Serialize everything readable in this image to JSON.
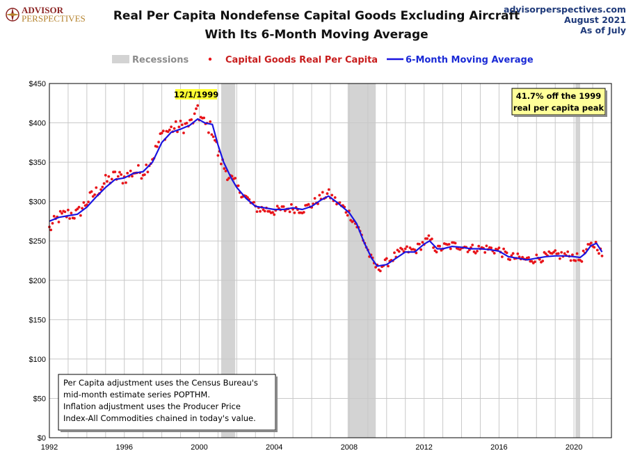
{
  "header": {
    "logo_line1": "ADVISOR",
    "logo_line2": "PERSPECTIVES",
    "title_line1": "Real Per Capita Nondefense Capital Goods Excluding Aircraft",
    "title_line2": "With Its 6-Month Moving Average",
    "site": "advisorperspectives.com",
    "date": "August 2021",
    "as_of": "As of July"
  },
  "legend": {
    "recessions": "Recessions",
    "dots": "Capital Goods Real Per Capita",
    "line": "6-Month Moving Average"
  },
  "colors": {
    "dots": "#e8141a",
    "line": "#1a14e0",
    "recession": "#d3d3d3",
    "peak_label_bg": "#ffff33",
    "callout_bg": "#ffff99",
    "legend_dots_text": "#c81e1e",
    "legend_line_text": "#1a2ad6",
    "legend_rec_text": "#8c8c8c"
  },
  "annotations": {
    "peak_label": "12/1/1999",
    "callout_line1": "41.7% off the 1999",
    "callout_line2": "real per capita peak",
    "note_lines": [
      "Per Capita adjustment uses the Census Bureau's",
      "mid-month estimate series POPTHM.",
      "Inflation adjustment uses the Producer Price",
      "Index-All Commodities chained in today's value."
    ]
  },
  "chart_data": {
    "type": "line",
    "title": "Real Per Capita Nondefense Capital Goods Excluding Aircraft With Its 6-Month Moving Average",
    "xlim": [
      1992,
      2022
    ],
    "ylim": [
      0,
      450
    ],
    "x_ticks": [
      1992,
      1996,
      2000,
      2004,
      2008,
      2012,
      2016,
      2020
    ],
    "y_ticks": [
      0,
      50,
      100,
      150,
      200,
      250,
      300,
      350,
      400,
      450
    ],
    "y_tick_labels": [
      "$0",
      "$50",
      "$100",
      "$150",
      "$200",
      "$250",
      "$300",
      "$350",
      "$400",
      "$450"
    ],
    "grid": true,
    "legend_position": "top",
    "recessions": [
      [
        2001.17,
        2001.92
      ],
      [
        2007.92,
        2009.42
      ],
      [
        2020.08,
        2020.33
      ]
    ],
    "peak": {
      "date": 1999.92,
      "value": 422
    },
    "series_points": {
      "name": "Capital Goods Real Per Capita",
      "anchors": [
        [
          1992.0,
          265
        ],
        [
          1992.5,
          280
        ],
        [
          1993.0,
          284
        ],
        [
          1993.5,
          284
        ],
        [
          1994.0,
          300
        ],
        [
          1994.5,
          312
        ],
        [
          1995.0,
          325
        ],
        [
          1995.5,
          332
        ],
        [
          1996.0,
          330
        ],
        [
          1996.5,
          338
        ],
        [
          1997.0,
          338
        ],
        [
          1997.5,
          355
        ],
        [
          1998.0,
          385
        ],
        [
          1998.5,
          392
        ],
        [
          1999.0,
          395
        ],
        [
          1999.5,
          398
        ],
        [
          1999.92,
          412
        ],
        [
          2000.3,
          398
        ],
        [
          2000.7,
          392
        ],
        [
          2001.0,
          362
        ],
        [
          2001.3,
          345
        ],
        [
          2001.7,
          328
        ],
        [
          2002.0,
          318
        ],
        [
          2002.5,
          305
        ],
        [
          2003.0,
          292
        ],
        [
          2003.5,
          290
        ],
        [
          2004.0,
          288
        ],
        [
          2004.5,
          290
        ],
        [
          2005.0,
          292
        ],
        [
          2005.5,
          290
        ],
        [
          2006.0,
          296
        ],
        [
          2006.5,
          305
        ],
        [
          2006.9,
          310
        ],
        [
          2007.3,
          300
        ],
        [
          2007.7,
          292
        ],
        [
          2008.0,
          285
        ],
        [
          2008.4,
          270
        ],
        [
          2008.8,
          250
        ],
        [
          2009.2,
          225
        ],
        [
          2009.5,
          215
        ],
        [
          2010.0,
          222
        ],
        [
          2010.5,
          232
        ],
        [
          2011.0,
          238
        ],
        [
          2011.5,
          238
        ],
        [
          2012.0,
          248
        ],
        [
          2012.3,
          252
        ],
        [
          2012.7,
          238
        ],
        [
          2013.0,
          242
        ],
        [
          2013.5,
          244
        ],
        [
          2014.0,
          244
        ],
        [
          2014.5,
          240
        ],
        [
          2015.0,
          240
        ],
        [
          2015.5,
          240
        ],
        [
          2016.0,
          238
        ],
        [
          2016.5,
          230
        ],
        [
          2017.0,
          228
        ],
        [
          2017.5,
          226
        ],
        [
          2018.0,
          228
        ],
        [
          2018.5,
          230
        ],
        [
          2019.0,
          232
        ],
        [
          2019.5,
          232
        ],
        [
          2020.0,
          230
        ],
        [
          2020.33,
          226
        ],
        [
          2020.6,
          236
        ],
        [
          2020.9,
          244
        ],
        [
          2021.2,
          246
        ],
        [
          2021.5,
          232
        ]
      ]
    },
    "series_ma": {
      "name": "6-Month Moving Average",
      "values": [
        [
          1992.0,
          275
        ],
        [
          1992.5,
          280
        ],
        [
          1993.0,
          282
        ],
        [
          1993.5,
          284
        ],
        [
          1994.0,
          293
        ],
        [
          1994.5,
          306
        ],
        [
          1995.0,
          318
        ],
        [
          1995.5,
          328
        ],
        [
          1996.0,
          330
        ],
        [
          1996.5,
          336
        ],
        [
          1997.0,
          338
        ],
        [
          1997.5,
          350
        ],
        [
          1998.0,
          375
        ],
        [
          1998.5,
          388
        ],
        [
          1999.0,
          392
        ],
        [
          1999.5,
          397
        ],
        [
          1999.92,
          405
        ],
        [
          2000.3,
          400
        ],
        [
          2000.7,
          398
        ],
        [
          2001.0,
          372
        ],
        [
          2001.3,
          350
        ],
        [
          2001.7,
          330
        ],
        [
          2002.0,
          318
        ],
        [
          2002.5,
          304
        ],
        [
          2003.0,
          294
        ],
        [
          2003.5,
          292
        ],
        [
          2004.0,
          290
        ],
        [
          2004.5,
          290
        ],
        [
          2005.0,
          292
        ],
        [
          2005.5,
          290
        ],
        [
          2006.0,
          294
        ],
        [
          2006.5,
          302
        ],
        [
          2006.9,
          307
        ],
        [
          2007.3,
          300
        ],
        [
          2007.7,
          292
        ],
        [
          2008.0,
          286
        ],
        [
          2008.4,
          272
        ],
        [
          2008.8,
          248
        ],
        [
          2009.2,
          228
        ],
        [
          2009.5,
          218
        ],
        [
          2010.0,
          220
        ],
        [
          2010.5,
          228
        ],
        [
          2011.0,
          236
        ],
        [
          2011.5,
          236
        ],
        [
          2012.0,
          246
        ],
        [
          2012.3,
          250
        ],
        [
          2012.7,
          240
        ],
        [
          2013.0,
          240
        ],
        [
          2013.5,
          243
        ],
        [
          2014.0,
          242
        ],
        [
          2014.5,
          240
        ],
        [
          2015.0,
          240
        ],
        [
          2015.5,
          239
        ],
        [
          2016.0,
          237
        ],
        [
          2016.5,
          230
        ],
        [
          2017.0,
          228
        ],
        [
          2017.5,
          226
        ],
        [
          2018.0,
          228
        ],
        [
          2018.5,
          230
        ],
        [
          2019.0,
          231
        ],
        [
          2019.5,
          231
        ],
        [
          2020.0,
          230
        ],
        [
          2020.33,
          229
        ],
        [
          2020.6,
          234
        ],
        [
          2020.9,
          244
        ],
        [
          2021.2,
          247
        ],
        [
          2021.5,
          236
        ]
      ]
    }
  }
}
